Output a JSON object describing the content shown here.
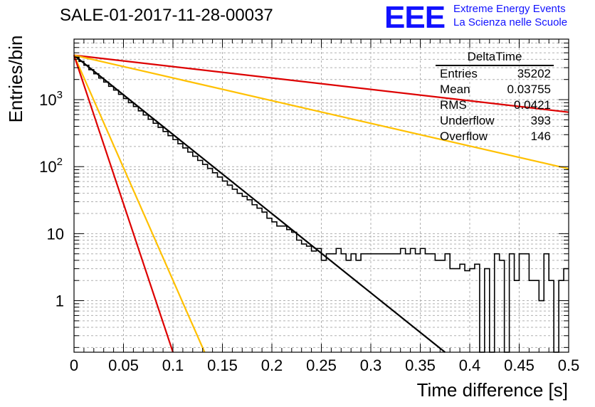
{
  "header": {
    "run_title": "SALE-01-2017-11-28-00037",
    "logo_text": "EEE",
    "logo_line1": "Extreme Energy Events",
    "logo_line2": "La Scienza nelle Scuole"
  },
  "stats_box": {
    "title": "DeltaTime",
    "rows": [
      {
        "label": "Entries",
        "value": "35202"
      },
      {
        "label": "Mean",
        "value": "0.03755"
      },
      {
        "label": "RMS",
        "value": "0.0421"
      },
      {
        "label": "Underflow",
        "value": "393"
      },
      {
        "label": "Overflow",
        "value": "146"
      }
    ]
  },
  "chart_data": {
    "type": "line",
    "title": "SALE-01-2017-11-28-00037",
    "xlabel": "Time difference [s]",
    "ylabel": "Entries/bin",
    "xlim": [
      0,
      0.5
    ],
    "ylim": [
      0.17,
      8000
    ],
    "y_scale": "log",
    "grid": true,
    "x_ticks": [
      "0",
      "0.05",
      "0.1",
      "0.15",
      "0.2",
      "0.25",
      "0.3",
      "0.35",
      "0.4",
      "0.45",
      "0.5"
    ],
    "y_ticks": [
      {
        "base": "1",
        "exp": ""
      },
      {
        "base": "10",
        "exp": ""
      },
      {
        "base": "10",
        "exp": "2"
      },
      {
        "base": "10",
        "exp": "3"
      }
    ],
    "histogram": {
      "name": "DeltaTime",
      "bin_width": 0.005,
      "x_start": 0,
      "counts": [
        4300,
        3720,
        3260,
        2800,
        2430,
        2100,
        1830,
        1580,
        1390,
        1200,
        1040,
        900,
        790,
        680,
        590,
        510,
        445,
        385,
        335,
        290,
        253,
        220,
        190,
        165,
        143,
        124,
        108,
        94,
        81,
        70,
        61,
        53,
        46,
        40,
        36,
        32,
        27,
        24,
        21,
        17,
        15,
        13,
        13,
        11.5,
        10.5,
        8,
        7,
        6.5,
        5.5,
        6,
        4,
        5,
        5,
        6,
        5,
        4,
        5,
        4,
        5,
        5,
        5,
        5,
        5,
        5,
        5,
        5,
        6,
        5,
        6,
        5,
        6,
        5,
        5,
        4,
        4,
        5,
        3,
        3,
        3.5,
        2.8,
        3,
        3.5,
        0,
        3,
        0,
        5,
        4,
        0,
        5,
        2,
        5,
        5,
        2,
        2,
        1,
        5,
        2,
        0,
        2,
        3
      ]
    },
    "fits": [
      {
        "color": "#000000",
        "values": [
          [
            0,
            4600
          ],
          [
            0.375,
            0.16
          ]
        ]
      },
      {
        "color": "#dd0000",
        "values": [
          [
            0,
            4600
          ],
          [
            0.5,
            650
          ]
        ]
      },
      {
        "color": "#ffc000",
        "values": [
          [
            0,
            4600
          ],
          [
            0.5,
            93
          ]
        ]
      },
      {
        "color": "#ffc000",
        "values": [
          [
            0,
            4600
          ],
          [
            0.132,
            0.16
          ]
        ]
      },
      {
        "color": "#dd0000",
        "values": [
          [
            0,
            4600
          ],
          [
            0.1,
            0.16
          ]
        ]
      }
    ],
    "colors": {
      "histogram": "#000000",
      "grid": "#b0b0b0",
      "frame": "#000000"
    }
  }
}
